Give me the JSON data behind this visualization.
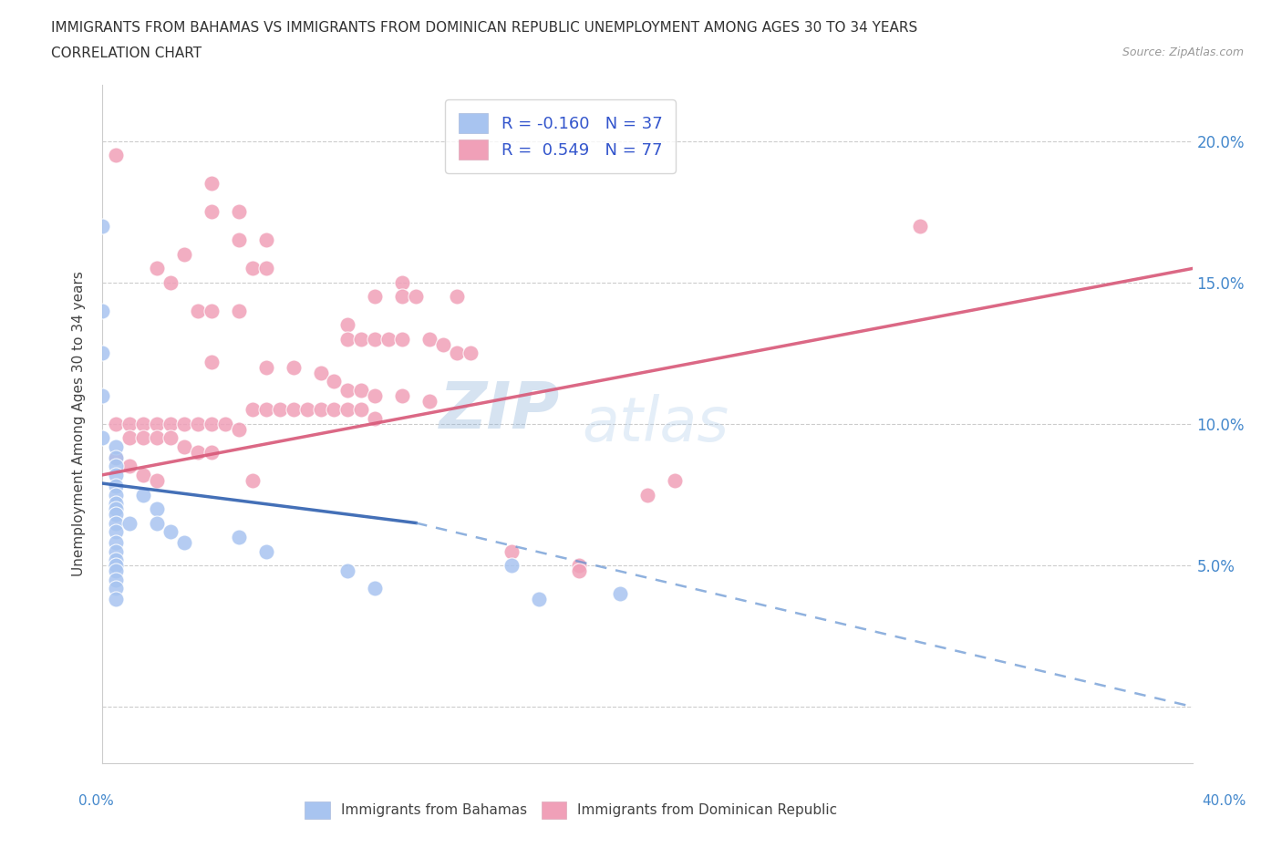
{
  "title_line1": "IMMIGRANTS FROM BAHAMAS VS IMMIGRANTS FROM DOMINICAN REPUBLIC UNEMPLOYMENT AMONG AGES 30 TO 34 YEARS",
  "title_line2": "CORRELATION CHART",
  "source": "Source: ZipAtlas.com",
  "ylabel": "Unemployment Among Ages 30 to 34 years",
  "xmin": 0.0,
  "xmax": 0.4,
  "ymin": -0.02,
  "ymax": 0.22,
  "yticks": [
    0.0,
    0.05,
    0.1,
    0.15,
    0.2
  ],
  "ytick_labels": [
    "",
    "5.0%",
    "10.0%",
    "15.0%",
    "20.0%"
  ],
  "bahamas_color": "#a8c4f0",
  "dominican_color": "#f0a0b8",
  "bahamas_edge": "#7090d0",
  "dominican_edge": "#d06080",
  "bahamas_R": -0.16,
  "bahamas_N": 37,
  "dominican_R": 0.549,
  "dominican_N": 77,
  "watermark_zip": "ZIP",
  "watermark_atlas": "atlas",
  "bahamas_scatter": [
    [
      0.0,
      0.17
    ],
    [
      0.0,
      0.14
    ],
    [
      0.0,
      0.125
    ],
    [
      0.0,
      0.11
    ],
    [
      0.0,
      0.095
    ],
    [
      0.005,
      0.092
    ],
    [
      0.005,
      0.088
    ],
    [
      0.005,
      0.085
    ],
    [
      0.005,
      0.082
    ],
    [
      0.005,
      0.078
    ],
    [
      0.005,
      0.075
    ],
    [
      0.005,
      0.072
    ],
    [
      0.005,
      0.07
    ],
    [
      0.005,
      0.068
    ],
    [
      0.005,
      0.065
    ],
    [
      0.005,
      0.062
    ],
    [
      0.005,
      0.058
    ],
    [
      0.005,
      0.055
    ],
    [
      0.005,
      0.052
    ],
    [
      0.005,
      0.05
    ],
    [
      0.005,
      0.048
    ],
    [
      0.005,
      0.045
    ],
    [
      0.005,
      0.042
    ],
    [
      0.005,
      0.038
    ],
    [
      0.01,
      0.065
    ],
    [
      0.015,
      0.075
    ],
    [
      0.02,
      0.07
    ],
    [
      0.02,
      0.065
    ],
    [
      0.025,
      0.062
    ],
    [
      0.03,
      0.058
    ],
    [
      0.05,
      0.06
    ],
    [
      0.06,
      0.055
    ],
    [
      0.09,
      0.048
    ],
    [
      0.1,
      0.042
    ],
    [
      0.15,
      0.05
    ],
    [
      0.16,
      0.038
    ],
    [
      0.19,
      0.04
    ]
  ],
  "dominican_scatter": [
    [
      0.005,
      0.195
    ],
    [
      0.04,
      0.185
    ],
    [
      0.04,
      0.175
    ],
    [
      0.05,
      0.175
    ],
    [
      0.05,
      0.165
    ],
    [
      0.06,
      0.165
    ],
    [
      0.03,
      0.16
    ],
    [
      0.055,
      0.155
    ],
    [
      0.02,
      0.155
    ],
    [
      0.025,
      0.15
    ],
    [
      0.06,
      0.155
    ],
    [
      0.11,
      0.15
    ],
    [
      0.1,
      0.145
    ],
    [
      0.11,
      0.145
    ],
    [
      0.115,
      0.145
    ],
    [
      0.13,
      0.145
    ],
    [
      0.3,
      0.17
    ],
    [
      0.035,
      0.14
    ],
    [
      0.04,
      0.14
    ],
    [
      0.05,
      0.14
    ],
    [
      0.09,
      0.135
    ],
    [
      0.09,
      0.13
    ],
    [
      0.095,
      0.13
    ],
    [
      0.1,
      0.13
    ],
    [
      0.105,
      0.13
    ],
    [
      0.11,
      0.13
    ],
    [
      0.12,
      0.13
    ],
    [
      0.125,
      0.128
    ],
    [
      0.13,
      0.125
    ],
    [
      0.135,
      0.125
    ],
    [
      0.04,
      0.122
    ],
    [
      0.06,
      0.12
    ],
    [
      0.07,
      0.12
    ],
    [
      0.08,
      0.118
    ],
    [
      0.085,
      0.115
    ],
    [
      0.09,
      0.112
    ],
    [
      0.095,
      0.112
    ],
    [
      0.1,
      0.11
    ],
    [
      0.11,
      0.11
    ],
    [
      0.12,
      0.108
    ],
    [
      0.055,
      0.105
    ],
    [
      0.06,
      0.105
    ],
    [
      0.065,
      0.105
    ],
    [
      0.07,
      0.105
    ],
    [
      0.075,
      0.105
    ],
    [
      0.08,
      0.105
    ],
    [
      0.085,
      0.105
    ],
    [
      0.09,
      0.105
    ],
    [
      0.095,
      0.105
    ],
    [
      0.1,
      0.102
    ],
    [
      0.005,
      0.1
    ],
    [
      0.01,
      0.1
    ],
    [
      0.015,
      0.1
    ],
    [
      0.02,
      0.1
    ],
    [
      0.025,
      0.1
    ],
    [
      0.03,
      0.1
    ],
    [
      0.035,
      0.1
    ],
    [
      0.04,
      0.1
    ],
    [
      0.045,
      0.1
    ],
    [
      0.05,
      0.098
    ],
    [
      0.01,
      0.095
    ],
    [
      0.015,
      0.095
    ],
    [
      0.02,
      0.095
    ],
    [
      0.025,
      0.095
    ],
    [
      0.03,
      0.092
    ],
    [
      0.035,
      0.09
    ],
    [
      0.04,
      0.09
    ],
    [
      0.005,
      0.088
    ],
    [
      0.01,
      0.085
    ],
    [
      0.015,
      0.082
    ],
    [
      0.02,
      0.08
    ],
    [
      0.055,
      0.08
    ],
    [
      0.2,
      0.075
    ],
    [
      0.21,
      0.08
    ],
    [
      0.15,
      0.055
    ],
    [
      0.175,
      0.05
    ],
    [
      0.175,
      0.048
    ]
  ],
  "bahamas_trendline_solid": [
    [
      0.0,
      0.079
    ],
    [
      0.115,
      0.065
    ]
  ],
  "bahamas_trendline_dashed": [
    [
      0.115,
      0.065
    ],
    [
      0.4,
      0.0
    ]
  ],
  "dominican_trendline": [
    [
      0.0,
      0.082
    ],
    [
      0.4,
      0.155
    ]
  ]
}
